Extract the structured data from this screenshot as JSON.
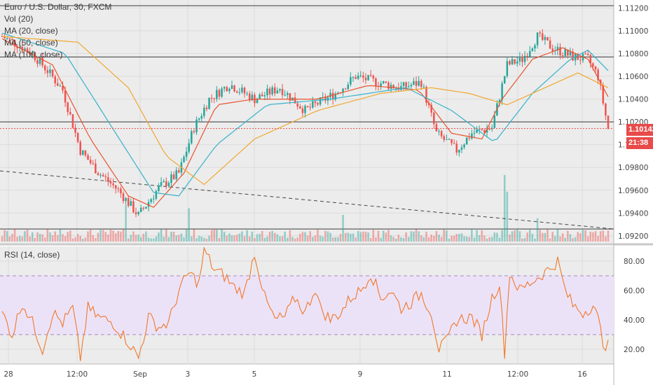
{
  "header": {
    "title": "Euro / U.S. Dollar, 30, FXCM",
    "indicators": [
      "Vol (20)",
      "MA (20, close)",
      "MA (50, close)",
      "MA (100, close)"
    ],
    "rsi_label": "RSI (14, close)"
  },
  "price_tag": {
    "price": "1.10142",
    "countdown": "21:38"
  },
  "colors": {
    "up": "#26a69a",
    "down": "#ef5350",
    "ma20": "#e8542f",
    "ma50": "#35b3c9",
    "ma100": "#f0a830",
    "rsi": "#f0782a",
    "rsi_band": "#ece2f8",
    "last_price": "#e94a4a"
  },
  "chart_data": [
    {
      "type": "candlestick",
      "title": "Euro / U.S. Dollar, 30, FXCM",
      "y_ticks": [
        "1.11200",
        "1.11000",
        "1.10800",
        "1.10600",
        "1.10400",
        "1.10200",
        "1.10000",
        "1.09800",
        "1.09600",
        "1.09400",
        "1.09200"
      ],
      "ylim": [
        1.0915,
        1.1127
      ],
      "x_ticks": [
        "28",
        "12:00",
        "Sep",
        "3",
        "5",
        "9",
        "11",
        "12:00",
        "16"
      ],
      "horizontal_levels": [
        1.1122,
        1.1077,
        1.102,
        1.0926
      ],
      "trendline": {
        "from": 1.0977,
        "to": 1.0926
      },
      "last_price": 1.10142,
      "key_points": [
        {
          "t": 0,
          "close": 1.1095
        },
        {
          "t": 6,
          "close": 1.1088
        },
        {
          "t": 12,
          "close": 1.108
        },
        {
          "t": 18,
          "close": 1.1065
        },
        {
          "t": 24,
          "close": 1.1048
        },
        {
          "t": 31,
          "close": 1.0995
        },
        {
          "t": 38,
          "close": 1.0976
        },
        {
          "t": 46,
          "close": 1.096
        },
        {
          "t": 54,
          "close": 1.0938
        },
        {
          "t": 62,
          "close": 1.0962
        },
        {
          "t": 70,
          "close": 1.0975
        },
        {
          "t": 76,
          "close": 1.1015
        },
        {
          "t": 82,
          "close": 1.104
        },
        {
          "t": 90,
          "close": 1.1053
        },
        {
          "t": 100,
          "close": 1.104
        },
        {
          "t": 110,
          "close": 1.105
        },
        {
          "t": 120,
          "close": 1.103
        },
        {
          "t": 132,
          "close": 1.1045
        },
        {
          "t": 140,
          "close": 1.106
        },
        {
          "t": 148,
          "close": 1.1055
        },
        {
          "t": 158,
          "close": 1.105
        },
        {
          "t": 166,
          "close": 1.1055
        },
        {
          "t": 172,
          "close": 1.101
        },
        {
          "t": 180,
          "close": 1.0995
        },
        {
          "t": 186,
          "close": 1.101
        },
        {
          "t": 194,
          "close": 1.1015
        },
        {
          "t": 200,
          "close": 1.107
        },
        {
          "t": 206,
          "close": 1.1075
        },
        {
          "t": 212,
          "close": 1.1095
        },
        {
          "t": 218,
          "close": 1.1085
        },
        {
          "t": 226,
          "close": 1.1077
        },
        {
          "t": 232,
          "close": 1.1075
        },
        {
          "t": 236,
          "close": 1.106
        },
        {
          "t": 240,
          "close": 1.1014
        }
      ],
      "ma_series": [
        {
          "name": "MA (20, close)",
          "points": [
            [
              0,
              1.1093
            ],
            [
              20,
              1.107
            ],
            [
              35,
              1.1005
            ],
            [
              50,
              1.0955
            ],
            [
              60,
              1.0945
            ],
            [
              72,
              1.0975
            ],
            [
              85,
              1.1035
            ],
            [
              100,
              1.104
            ],
            [
              125,
              1.104
            ],
            [
              145,
              1.1052
            ],
            [
              165,
              1.1048
            ],
            [
              178,
              1.101
            ],
            [
              190,
              1.1005
            ],
            [
              198,
              1.104
            ],
            [
              210,
              1.1075
            ],
            [
              222,
              1.1085
            ],
            [
              232,
              1.1075
            ],
            [
              240,
              1.1042
            ]
          ]
        },
        {
          "name": "MA (50, close)",
          "points": [
            [
              0,
              1.1098
            ],
            [
              25,
              1.108
            ],
            [
              45,
              1.101
            ],
            [
              60,
              1.0958
            ],
            [
              70,
              1.0955
            ],
            [
              85,
              1.1
            ],
            [
              105,
              1.1035
            ],
            [
              130,
              1.104
            ],
            [
              160,
              1.105
            ],
            [
              178,
              1.103
            ],
            [
              195,
              1.1002
            ],
            [
              210,
              1.1045
            ],
            [
              225,
              1.1075
            ],
            [
              232,
              1.1083
            ],
            [
              240,
              1.1065
            ]
          ]
        },
        {
          "name": "MA (100, close)",
          "points": [
            [
              0,
              1.1095
            ],
            [
              30,
              1.109
            ],
            [
              50,
              1.105
            ],
            [
              65,
              1.099
            ],
            [
              80,
              1.0965
            ],
            [
              100,
              1.1005
            ],
            [
              125,
              1.103
            ],
            [
              150,
              1.1045
            ],
            [
              170,
              1.105
            ],
            [
              185,
              1.1045
            ],
            [
              200,
              1.1035
            ],
            [
              215,
              1.105
            ],
            [
              228,
              1.1063
            ],
            [
              240,
              1.105
            ]
          ]
        }
      ],
      "volume_spikes": [
        [
          49,
          0.55
        ],
        [
          74,
          0.5
        ],
        [
          135,
          0.4
        ],
        [
          199,
          1.0
        ],
        [
          200,
          0.75
        ],
        [
          212,
          0.35
        ]
      ]
    },
    {
      "type": "line",
      "title": "RSI (14, close)",
      "y_ticks": [
        "80.00",
        "60.00",
        "40.00",
        "20.00"
      ],
      "ylim": [
        10,
        90
      ],
      "band": [
        30,
        70
      ],
      "key_points": [
        [
          0,
          45
        ],
        [
          4,
          30
        ],
        [
          8,
          52
        ],
        [
          12,
          38
        ],
        [
          16,
          20
        ],
        [
          20,
          45
        ],
        [
          24,
          38
        ],
        [
          28,
          48
        ],
        [
          31,
          14
        ],
        [
          34,
          48
        ],
        [
          38,
          42
        ],
        [
          44,
          38
        ],
        [
          50,
          25
        ],
        [
          54,
          14
        ],
        [
          58,
          42
        ],
        [
          62,
          35
        ],
        [
          66,
          38
        ],
        [
          70,
          60
        ],
        [
          74,
          72
        ],
        [
          78,
          65
        ],
        [
          80,
          88
        ],
        [
          84,
          74
        ],
        [
          88,
          70
        ],
        [
          92,
          62
        ],
        [
          96,
          58
        ],
        [
          100,
          86
        ],
        [
          104,
          55
        ],
        [
          108,
          40
        ],
        [
          112,
          42
        ],
        [
          116,
          55
        ],
        [
          120,
          45
        ],
        [
          124,
          62
        ],
        [
          126,
          48
        ],
        [
          130,
          40
        ],
        [
          134,
          45
        ],
        [
          138,
          55
        ],
        [
          142,
          60
        ],
        [
          146,
          72
        ],
        [
          150,
          55
        ],
        [
          154,
          60
        ],
        [
          158,
          48
        ],
        [
          162,
          52
        ],
        [
          166,
          58
        ],
        [
          170,
          45
        ],
        [
          173,
          20
        ],
        [
          176,
          25
        ],
        [
          180,
          40
        ],
        [
          186,
          42
        ],
        [
          190,
          30
        ],
        [
          194,
          55
        ],
        [
          197,
          65
        ],
        [
          199,
          18
        ],
        [
          201,
          72
        ],
        [
          205,
          60
        ],
        [
          209,
          65
        ],
        [
          213,
          70
        ],
        [
          217,
          75
        ],
        [
          220,
          80
        ],
        [
          223,
          60
        ],
        [
          226,
          50
        ],
        [
          230,
          45
        ],
        [
          234,
          50
        ],
        [
          236,
          40
        ],
        [
          238,
          25
        ],
        [
          240,
          22
        ]
      ]
    }
  ]
}
